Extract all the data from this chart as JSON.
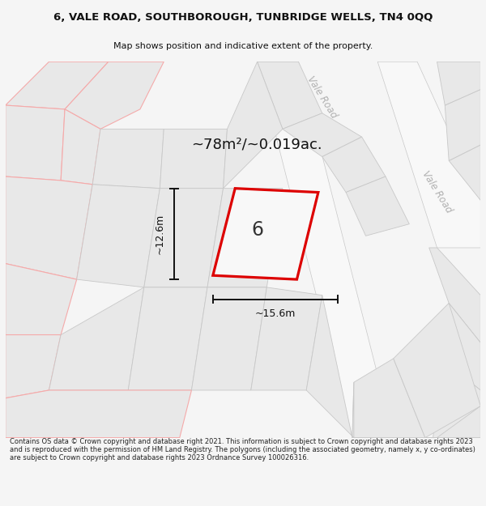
{
  "title_line1": "6, VALE ROAD, SOUTHBOROUGH, TUNBRIDGE WELLS, TN4 0QQ",
  "title_line2": "Map shows position and indicative extent of the property.",
  "area_text": "~78m²/~0.019ac.",
  "dim_width": "~15.6m",
  "dim_height": "~12.6m",
  "label_number": "6",
  "road_label_top": "Vale Road",
  "road_label_right": "Vale Road",
  "footer_text": "Contains OS data © Crown copyright and database right 2021. This information is subject to Crown copyright and database rights 2023 and is reproduced with the permission of HM Land Registry. The polygons (including the associated geometry, namely x, y co-ordinates) are subject to Crown copyright and database rights 2023 Ordnance Survey 100026316.",
  "bg_color": "#f5f5f5",
  "map_bg": "#f0f0f0",
  "plot_color_red": "#dd0000",
  "block_fill": "#e8e8e8",
  "block_stroke": "#c8c8c8",
  "parcel_stroke": "#f5aaaa",
  "dim_color": "#111111",
  "title_color": "#111111",
  "footer_color": "#222222",
  "road_text_color": "#b0b0b0",
  "road_fill": "#f5f5f5"
}
